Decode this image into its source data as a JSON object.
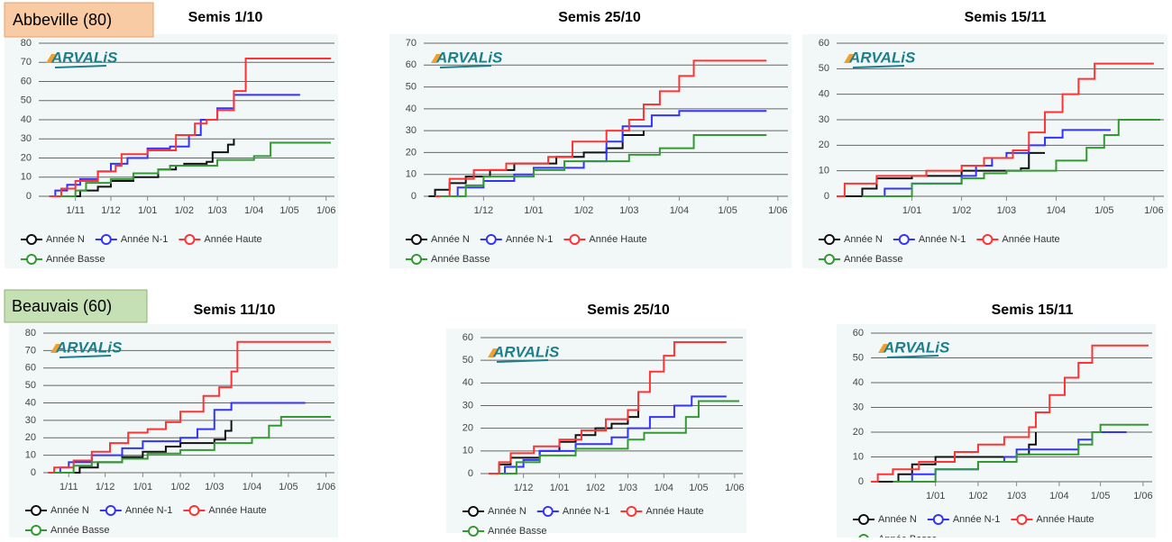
{
  "locations": [
    "Abbeville (80)",
    "Beauvais (60)"
  ],
  "chart_data": [
    {
      "type": "step",
      "title": "Semis 1/10",
      "logo": "ARVALiS",
      "ylim": [
        0,
        80
      ],
      "yticks": [
        0,
        10,
        20,
        30,
        40,
        50,
        60,
        70,
        80
      ],
      "xlim": [
        "1/10",
        "5/06"
      ],
      "xticks": [
        "1/11",
        "1/12",
        "1/01",
        "1/02",
        "1/03",
        "1/04",
        "1/05",
        "1/06"
      ],
      "grid": true,
      "series": [
        {
          "name": "Année N",
          "color": "#111111",
          "x": [
            "20/10",
            "5/11",
            "20/11",
            "1/12",
            "20/12",
            "10/01",
            "25/01",
            "1/02",
            "20/02",
            "25/02",
            "10/03",
            "15/03"
          ],
          "values": [
            0,
            3,
            5,
            8,
            10,
            14,
            16,
            17,
            18,
            23,
            27,
            30
          ]
        },
        {
          "name": "Année N-1",
          "color": "#3333ff",
          "x": [
            "10/10",
            "15/10",
            "25/10",
            "5/11",
            "20/11",
            "1/12",
            "15/12",
            "1/01",
            "20/01",
            "5/02",
            "15/02",
            "1/03",
            "15/03",
            "10/05"
          ],
          "values": [
            0,
            3,
            6,
            9,
            13,
            17,
            20,
            25,
            26,
            32,
            40,
            46,
            53,
            53
          ]
        },
        {
          "name": "Année Haute",
          "color": "#ff3333",
          "x": [
            "10/10",
            "20/10",
            "1/11",
            "20/11",
            "5/12",
            "10/12",
            "1/01",
            "25/01",
            "10/02",
            "20/02",
            "1/03",
            "15/03",
            "25/03",
            "5/06"
          ],
          "values": [
            0,
            4,
            8,
            13,
            16,
            22,
            24,
            32,
            38,
            40,
            45,
            55,
            72,
            72
          ]
        },
        {
          "name": "Année Basse",
          "color": "#339933",
          "x": [
            "20/10",
            "1/11",
            "10/11",
            "1/12",
            "20/12",
            "10/01",
            "20/01",
            "1/03",
            "1/04",
            "15/04",
            "5/06"
          ],
          "values": [
            0,
            3,
            7,
            9,
            12,
            14,
            16,
            19,
            21,
            28,
            28
          ]
        }
      ]
    },
    {
      "type": "step",
      "title": "Semis 25/10",
      "logo": "ARVALiS",
      "ylim": [
        0,
        70
      ],
      "yticks": [
        0,
        10,
        20,
        30,
        40,
        50,
        60,
        70
      ],
      "xlim": [
        "25/10",
        "5/06"
      ],
      "xticks": [
        "1/12",
        "1/01",
        "1/02",
        "1/03",
        "1/04",
        "1/05",
        "1/06"
      ],
      "grid": true,
      "series": [
        {
          "name": "Année N",
          "color": "#111111",
          "x": [
            "28/10",
            "1/11",
            "10/11",
            "20/11",
            "5/12",
            "20/12",
            "15/01",
            "1/02",
            "15/02",
            "25/02",
            "10/03"
          ],
          "values": [
            0,
            3,
            6,
            9,
            12,
            15,
            18,
            20,
            22,
            28,
            30
          ]
        },
        {
          "name": "Année N-1",
          "color": "#3333ff",
          "x": [
            "5/11",
            "15/11",
            "1/12",
            "20/12",
            "1/01",
            "1/02",
            "15/02",
            "25/02",
            "15/03",
            "1/04",
            "25/05"
          ],
          "values": [
            0,
            4,
            7,
            10,
            13,
            16,
            25,
            32,
            37,
            39,
            39
          ]
        },
        {
          "name": "Année Haute",
          "color": "#ff3333",
          "x": [
            "1/11",
            "10/11",
            "25/11",
            "15/12",
            "10/01",
            "25/01",
            "15/02",
            "1/03",
            "10/03",
            "20/03",
            "1/04",
            "10/04",
            "25/05"
          ],
          "values": [
            0,
            8,
            12,
            15,
            18,
            25,
            30,
            35,
            42,
            48,
            55,
            62,
            62
          ]
        },
        {
          "name": "Année Basse",
          "color": "#339933",
          "x": [
            "5/11",
            "20/11",
            "1/12",
            "1/01",
            "20/01",
            "1/03",
            "20/03",
            "10/04",
            "25/05"
          ],
          "values": [
            0,
            5,
            9,
            12,
            16,
            19,
            22,
            28,
            28
          ]
        }
      ]
    },
    {
      "type": "step",
      "title": "Semis 15/11",
      "logo": "ARVALiS",
      "ylim": [
        0,
        60
      ],
      "yticks": [
        0,
        10,
        20,
        30,
        40,
        50,
        60
      ],
      "xlim": [
        "15/11",
        "5/06"
      ],
      "xticks": [
        "1/01",
        "1/02",
        "1/03",
        "1/04",
        "1/05",
        "1/06"
      ],
      "grid": true,
      "series": [
        {
          "name": "Année N",
          "color": "#111111",
          "x": [
            "20/11",
            "1/12",
            "10/12",
            "1/01",
            "1/02",
            "10/03",
            "15/03",
            "25/03"
          ],
          "values": [
            0,
            3,
            7,
            8,
            10,
            11,
            17,
            17
          ]
        },
        {
          "name": "Année N-1",
          "color": "#3333ff",
          "x": [
            "1/12",
            "15/12",
            "1/01",
            "1/02",
            "10/02",
            "20/02",
            "1/03",
            "15/03",
            "25/03",
            "5/04",
            "5/05"
          ],
          "values": [
            0,
            3,
            5,
            8,
            12,
            15,
            17,
            20,
            23,
            26,
            26
          ]
        },
        {
          "name": "Année Haute",
          "color": "#ff3333",
          "x": [
            "15/11",
            "20/11",
            "10/12",
            "10/01",
            "1/02",
            "15/02",
            "5/03",
            "15/03",
            "25/03",
            "5/04",
            "15/04",
            "25/04",
            "1/06"
          ],
          "values": [
            0,
            5,
            8,
            10,
            12,
            15,
            18,
            25,
            33,
            40,
            46,
            52,
            52
          ]
        },
        {
          "name": "Année Basse",
          "color": "#339933",
          "x": [
            "1/12",
            "1/01",
            "1/02",
            "15/02",
            "1/03",
            "1/04",
            "20/04",
            "1/05",
            "10/05",
            "5/06"
          ],
          "values": [
            0,
            5,
            7,
            9,
            10,
            14,
            19,
            24,
            30,
            30
          ]
        }
      ]
    },
    {
      "type": "step",
      "title": "Semis 11/10",
      "logo": "ARVALiS",
      "ylim": [
        0,
        80
      ],
      "yticks": [
        0,
        10,
        20,
        30,
        40,
        50,
        60,
        70,
        80
      ],
      "xlim": [
        "11/10",
        "5/06"
      ],
      "xticks": [
        "1/11",
        "1/12",
        "1/01",
        "1/02",
        "1/03",
        "1/04",
        "1/05",
        "1/06"
      ],
      "grid": true,
      "series": [
        {
          "name": "Année N",
          "color": "#111111",
          "x": [
            "25/10",
            "10/11",
            "25/11",
            "15/12",
            "1/01",
            "20/01",
            "1/02",
            "1/03",
            "10/03",
            "15/03"
          ],
          "values": [
            0,
            3,
            6,
            9,
            12,
            15,
            17,
            19,
            24,
            30
          ]
        },
        {
          "name": "Année N-1",
          "color": "#3333ff",
          "x": [
            "15/10",
            "25/10",
            "1/11",
            "20/11",
            "15/12",
            "1/01",
            "1/02",
            "15/02",
            "1/03",
            "15/03",
            "15/05"
          ],
          "values": [
            0,
            3,
            6,
            10,
            14,
            18,
            20,
            25,
            36,
            40,
            40
          ]
        },
        {
          "name": "Année Haute",
          "color": "#ff3333",
          "x": [
            "15/10",
            "20/10",
            "5/11",
            "20/11",
            "5/12",
            "20/12",
            "5/01",
            "20/01",
            "1/02",
            "20/02",
            "5/03",
            "15/03",
            "20/03",
            "5/06"
          ],
          "values": [
            0,
            3,
            7,
            12,
            17,
            23,
            25,
            29,
            35,
            44,
            49,
            58,
            75,
            75
          ]
        },
        {
          "name": "Année Basse",
          "color": "#339933",
          "x": [
            "20/10",
            "5/11",
            "20/11",
            "15/12",
            "5/01",
            "1/02",
            "1/03",
            "1/04",
            "15/04",
            "25/04",
            "5/06"
          ],
          "values": [
            0,
            4,
            6,
            8,
            11,
            13,
            17,
            20,
            27,
            32,
            32
          ]
        }
      ]
    },
    {
      "type": "step",
      "title": "Semis 25/10",
      "logo": "ARVALiS",
      "ylim": [
        0,
        60
      ],
      "yticks": [
        0,
        10,
        20,
        30,
        40,
        50,
        60
      ],
      "xlim": [
        "25/10",
        "5/06"
      ],
      "xticks": [
        "1/12",
        "1/01",
        "1/02",
        "1/03",
        "1/04",
        "1/05",
        "1/06"
      ],
      "grid": true,
      "series": [
        {
          "name": "Année N",
          "color": "#111111",
          "x": [
            "1/11",
            "10/11",
            "20/11",
            "15/12",
            "1/01",
            "15/01",
            "1/02",
            "15/02",
            "1/03",
            "10/03"
          ],
          "values": [
            0,
            4,
            7,
            10,
            14,
            17,
            20,
            22,
            25,
            30
          ]
        },
        {
          "name": "Année N-1",
          "color": "#3333ff",
          "x": [
            "5/11",
            "15/11",
            "1/12",
            "15/12",
            "15/01",
            "15/02",
            "1/03",
            "20/03",
            "10/04",
            "25/04",
            "25/05"
          ],
          "values": [
            0,
            3,
            6,
            10,
            13,
            16,
            20,
            25,
            30,
            34,
            34
          ]
        },
        {
          "name": "Année Haute",
          "color": "#ff3333",
          "x": [
            "1/11",
            "10/11",
            "20/11",
            "10/12",
            "1/01",
            "20/01",
            "10/02",
            "1/03",
            "10/03",
            "20/03",
            "1/04",
            "10/04",
            "25/05"
          ],
          "values": [
            0,
            5,
            9,
            12,
            15,
            19,
            24,
            28,
            36,
            45,
            52,
            58,
            58
          ]
        },
        {
          "name": "Année Basse",
          "color": "#339933",
          "x": [
            "10/11",
            "25/11",
            "15/12",
            "15/01",
            "1/03",
            "15/03",
            "20/04",
            "1/05",
            "5/06"
          ],
          "values": [
            0,
            5,
            8,
            11,
            15,
            18,
            25,
            32,
            32
          ]
        }
      ]
    },
    {
      "type": "step",
      "title": "Semis 15/11",
      "logo": "ARVALiS",
      "ylim": [
        0,
        60
      ],
      "yticks": [
        0,
        10,
        20,
        30,
        40,
        50,
        60
      ],
      "xlim": [
        "15/11",
        "5/06"
      ],
      "xticks": [
        "1/01",
        "1/02",
        "1/03",
        "1/04",
        "1/05",
        "1/06"
      ],
      "grid": true,
      "series": [
        {
          "name": "Année N",
          "color": "#111111",
          "x": [
            "20/11",
            "5/12",
            "15/12",
            "1/01",
            "1/03",
            "10/03",
            "15/03"
          ],
          "values": [
            0,
            3,
            7,
            10,
            11,
            15,
            20
          ]
        },
        {
          "name": "Année N-1",
          "color": "#3333ff",
          "x": [
            "1/12",
            "15/12",
            "1/01",
            "1/02",
            "20/02",
            "1/03",
            "15/04",
            "25/04",
            "20/05"
          ],
          "values": [
            0,
            3,
            5,
            8,
            10,
            13,
            17,
            20,
            20
          ]
        },
        {
          "name": "Année Haute",
          "color": "#ff3333",
          "x": [
            "15/11",
            "20/11",
            "1/12",
            "20/12",
            "15/01",
            "1/02",
            "20/02",
            "10/03",
            "15/03",
            "25/03",
            "5/04",
            "15/04",
            "25/04",
            "5/06"
          ],
          "values": [
            0,
            3,
            5,
            8,
            12,
            15,
            18,
            22,
            28,
            35,
            42,
            48,
            55,
            55
          ]
        },
        {
          "name": "Année Basse",
          "color": "#339933",
          "x": [
            "1/12",
            "1/01",
            "1/02",
            "1/03",
            "15/04",
            "25/04",
            "1/05",
            "5/06"
          ],
          "values": [
            0,
            5,
            8,
            11,
            15,
            20,
            23,
            23
          ]
        }
      ]
    }
  ]
}
